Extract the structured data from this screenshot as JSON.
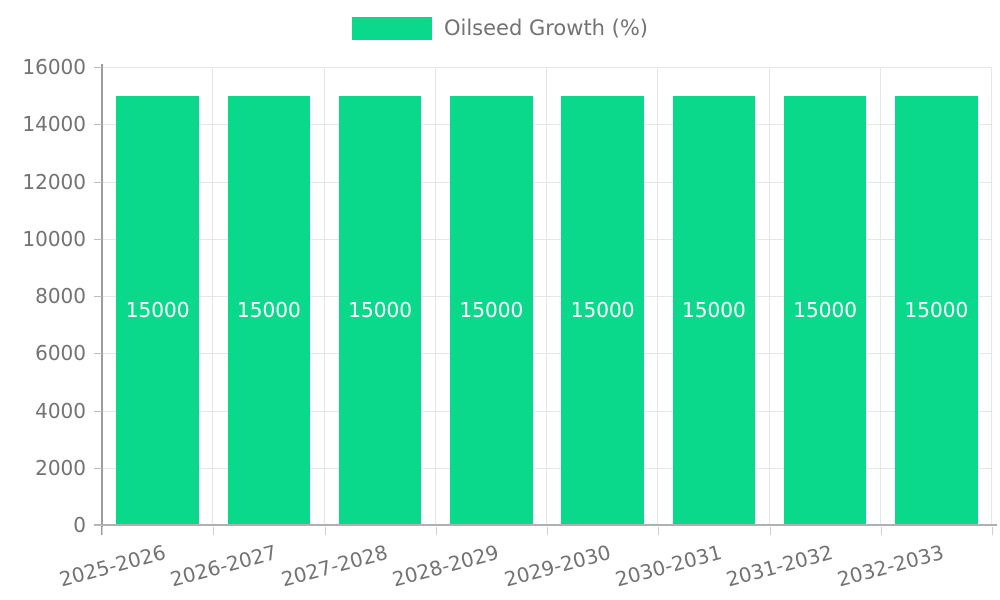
{
  "legend": [
    {
      "label": "Oilseed Growth (%)",
      "color": "#0ad98c"
    }
  ],
  "chart_data": {
    "type": "bar",
    "title": "",
    "xlabel": "",
    "ylabel": "",
    "categories": [
      "2025-2026",
      "2026-2027",
      "2027-2028",
      "2028-2029",
      "2029-2030",
      "2030-2031",
      "2031-2032",
      "2032-2033"
    ],
    "series": [
      {
        "name": "Oilseed Growth (%)",
        "color": "#0ad98c",
        "values": [
          15000,
          15000,
          15000,
          15000,
          15000,
          15000,
          15000,
          15000
        ]
      }
    ],
    "bar_value_labels": [
      "15000",
      "15000",
      "15000",
      "15000",
      "15000",
      "15000",
      "15000",
      "15000"
    ],
    "ylim": [
      0,
      16000
    ],
    "yticks": [
      0,
      2000,
      4000,
      6000,
      8000,
      10000,
      12000,
      14000,
      16000
    ],
    "grid": true,
    "legend_position": "top",
    "x_label_rotation_deg": -15,
    "colors": {
      "bar": "#0ad98c",
      "grid": "#e6e6e6",
      "axis": "#9c9c9c",
      "text": "#737373",
      "bar_label": "#ffffff",
      "background": "#ffffff"
    }
  }
}
